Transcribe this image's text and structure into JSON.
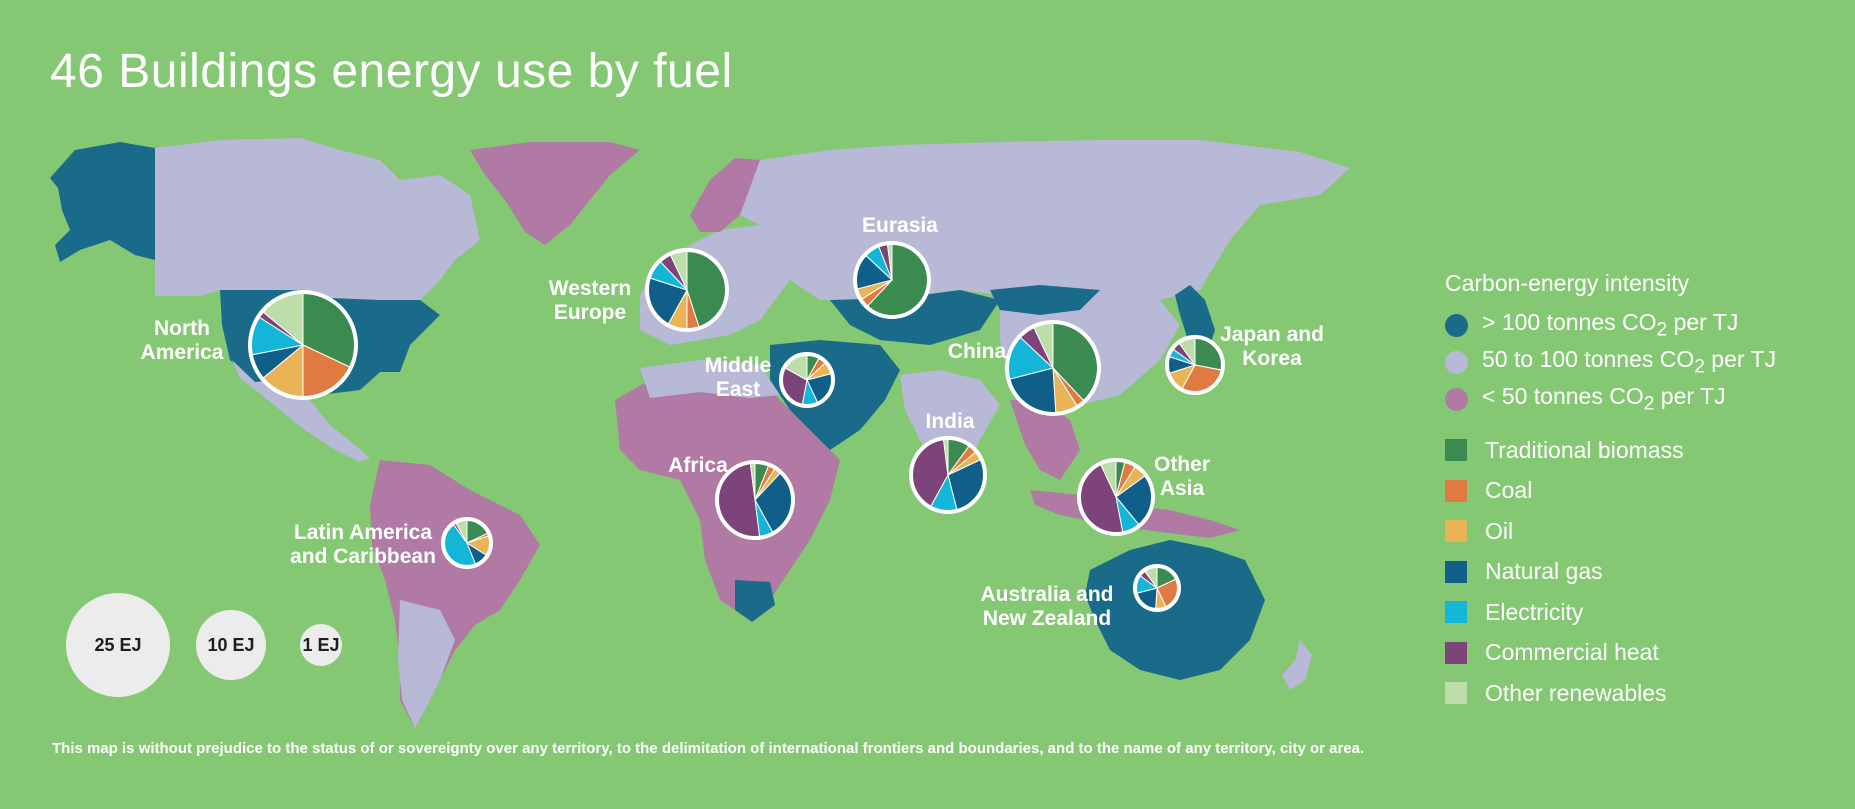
{
  "title": "46 Buildings energy use by fuel",
  "colors": {
    "background": "#84c873",
    "high_intensity": "#1a6a8a",
    "mid_intensity": "#b8b9d6",
    "low_intensity": "#b07aa4"
  },
  "legend": {
    "title": "Carbon-energy intensity",
    "intensity": [
      {
        "label": "> 100 tonnes CO",
        "sub": "2",
        "suffix": " per TJ",
        "color": "#1a6a8a"
      },
      {
        "label": "50 to 100 tonnes CO",
        "sub": "2",
        "suffix": " per TJ",
        "color": "#b8b9d6"
      },
      {
        "label": "< 50 tonnes CO",
        "sub": "2",
        "suffix": " per TJ",
        "color": "#b07aa4"
      }
    ],
    "fuels": [
      {
        "label": "Traditional biomass",
        "color": "#3b8a50"
      },
      {
        "label": "Coal",
        "color": "#e07a43"
      },
      {
        "label": "Oil",
        "color": "#e8b455"
      },
      {
        "label": "Natural gas",
        "color": "#0f5f89"
      },
      {
        "label": "Electricity",
        "color": "#13b6d8"
      },
      {
        "label": "Commercial heat",
        "color": "#7d4479"
      },
      {
        "label": "Other renewables",
        "color": "#bddda9"
      }
    ]
  },
  "regions": [
    {
      "id": "north-america",
      "lines": [
        "North",
        "America"
      ],
      "shares": [
        0.32,
        0.18,
        0.14,
        0.08,
        0.12,
        0.02,
        0.14
      ]
    },
    {
      "id": "western-europe",
      "lines": [
        "Western",
        "Europe"
      ],
      "shares": [
        0.45,
        0.05,
        0.08,
        0.22,
        0.08,
        0.05,
        0.07
      ]
    },
    {
      "id": "eurasia",
      "lines": [
        "Eurasia"
      ],
      "shares": [
        0.62,
        0.04,
        0.05,
        0.16,
        0.07,
        0.04,
        0.02
      ]
    },
    {
      "id": "middle-east",
      "lines": [
        "Middle",
        "East"
      ],
      "shares": [
        0.08,
        0.05,
        0.08,
        0.22,
        0.1,
        0.3,
        0.17
      ]
    },
    {
      "id": "china",
      "lines": [
        "China"
      ],
      "shares": [
        0.38,
        0.03,
        0.08,
        0.22,
        0.16,
        0.06,
        0.07
      ]
    },
    {
      "id": "japan-korea",
      "lines": [
        "Japan and",
        "Korea"
      ],
      "shares": [
        0.28,
        0.3,
        0.12,
        0.1,
        0.05,
        0.05,
        0.1
      ]
    },
    {
      "id": "india",
      "lines": [
        "India"
      ],
      "shares": [
        0.1,
        0.04,
        0.04,
        0.28,
        0.12,
        0.4,
        0.02
      ]
    },
    {
      "id": "africa",
      "lines": [
        "Africa"
      ],
      "shares": [
        0.06,
        0.03,
        0.03,
        0.3,
        0.06,
        0.5,
        0.02
      ]
    },
    {
      "id": "other-asia",
      "lines": [
        "Other",
        "Asia"
      ],
      "shares": [
        0.04,
        0.05,
        0.06,
        0.24,
        0.08,
        0.46,
        0.07
      ]
    },
    {
      "id": "latin-america",
      "lines": [
        "Latin America",
        "and Caribbean"
      ],
      "shares": [
        0.18,
        0.02,
        0.14,
        0.1,
        0.46,
        0.02,
        0.08
      ]
    },
    {
      "id": "australia-nz",
      "lines": [
        "Australia and",
        "New Zealand"
      ],
      "shares": [
        0.18,
        0.25,
        0.08,
        0.2,
        0.14,
        0.05,
        0.1
      ]
    }
  ],
  "scale_bubbles": [
    {
      "id": "bubble-25",
      "label": "25 EJ"
    },
    {
      "id": "bubble-10",
      "label": "10 EJ"
    },
    {
      "id": "bubble-1",
      "label": "1 EJ"
    }
  ],
  "disclaimer": "This map is without prejudice to the status of or sovereignty over any territory, to the delimitation of international frontiers and boundaries, and to the name of any territory, city or area."
}
